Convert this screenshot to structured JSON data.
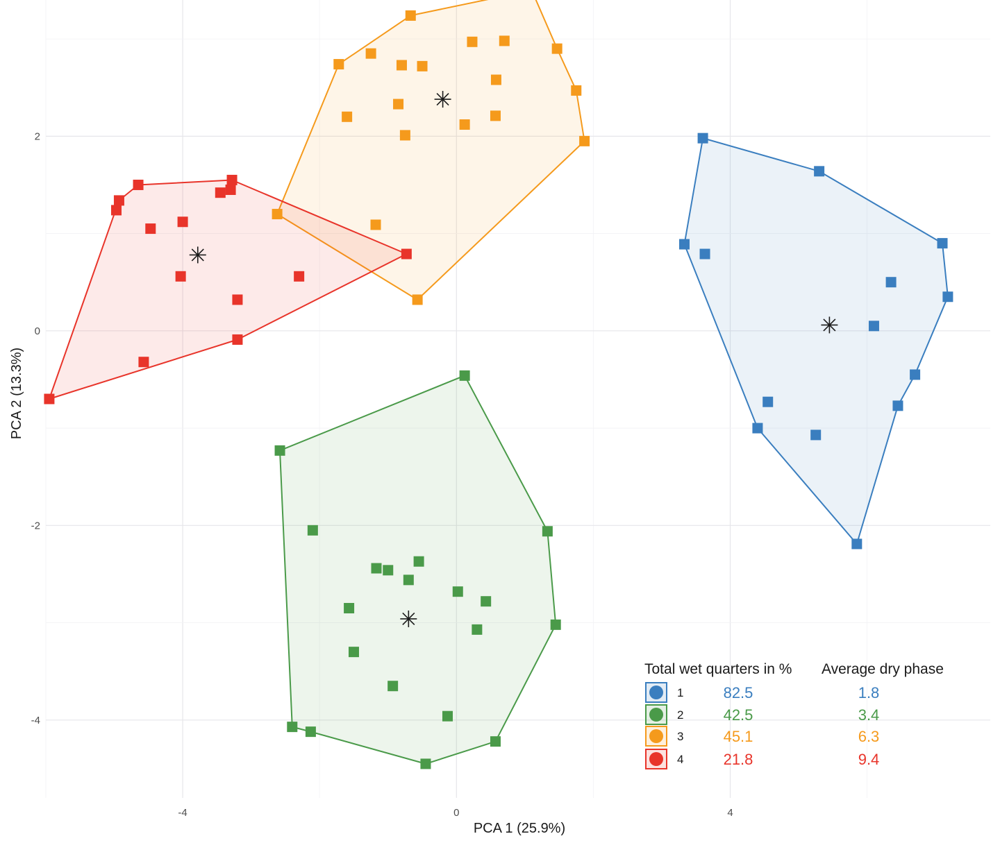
{
  "chart_data": {
    "type": "scatter",
    "xlabel": "PCA 1 (25.9%)",
    "ylabel": "PCA 2 (13.3%)",
    "xlim": [
      -6.0,
      7.8
    ],
    "ylim": [
      -4.8,
      3.4
    ],
    "x_ticks": [
      -4,
      0,
      4
    ],
    "x_tick_labels": [
      "-4",
      "0",
      "4"
    ],
    "y_ticks": [
      -4,
      -2,
      0,
      2
    ],
    "y_tick_labels": [
      "-4",
      "-2",
      "0",
      "2"
    ],
    "grid": true,
    "legend_position": "bottom-right",
    "legend_headers": [
      "Total wet quarters in %",
      "Average dry phase"
    ],
    "centroid_marker": "asterisk",
    "series": [
      {
        "name": "1",
        "color": "#3a7ebf",
        "wet_quarters": "82.5",
        "dry_phase": "1.8",
        "centroid": [
          5.45,
          0.06
        ],
        "hull": [
          [
            3.6,
            1.98
          ],
          [
            5.3,
            1.64
          ],
          [
            7.1,
            0.9
          ],
          [
            7.18,
            0.35
          ],
          [
            6.7,
            -0.45
          ],
          [
            6.45,
            -0.77
          ],
          [
            5.85,
            -2.19
          ],
          [
            4.4,
            -1.0
          ],
          [
            3.33,
            0.89
          ]
        ],
        "points": [
          [
            3.6,
            1.98
          ],
          [
            5.3,
            1.64
          ],
          [
            3.33,
            0.89
          ],
          [
            3.63,
            0.79
          ],
          [
            7.1,
            0.9
          ],
          [
            6.35,
            0.5
          ],
          [
            7.18,
            0.35
          ],
          [
            6.1,
            0.05
          ],
          [
            6.7,
            -0.45
          ],
          [
            6.45,
            -0.77
          ],
          [
            4.55,
            -0.73
          ],
          [
            4.4,
            -1.0
          ],
          [
            5.25,
            -1.07
          ],
          [
            5.85,
            -2.19
          ]
        ]
      },
      {
        "name": "2",
        "color": "#4a9a49",
        "wet_quarters": "42.5",
        "dry_phase": "3.4",
        "centroid": [
          -0.7,
          -2.96
        ],
        "hull": [
          [
            0.12,
            -0.46
          ],
          [
            1.33,
            -2.06
          ],
          [
            1.45,
            -3.02
          ],
          [
            0.57,
            -4.22
          ],
          [
            -0.45,
            -4.45
          ],
          [
            -2.13,
            -4.12
          ],
          [
            -2.4,
            -4.07
          ],
          [
            -2.58,
            -1.23
          ]
        ],
        "points": [
          [
            0.12,
            -0.46
          ],
          [
            -2.58,
            -1.23
          ],
          [
            -2.1,
            -2.05
          ],
          [
            1.33,
            -2.06
          ],
          [
            -0.55,
            -2.37
          ],
          [
            -1.17,
            -2.44
          ],
          [
            -1.0,
            -2.46
          ],
          [
            -0.7,
            -2.56
          ],
          [
            0.02,
            -2.68
          ],
          [
            0.43,
            -2.78
          ],
          [
            -1.57,
            -2.85
          ],
          [
            0.3,
            -3.07
          ],
          [
            1.45,
            -3.02
          ],
          [
            -1.5,
            -3.3
          ],
          [
            -0.93,
            -3.65
          ],
          [
            -0.13,
            -3.96
          ],
          [
            -2.4,
            -4.07
          ],
          [
            -2.13,
            -4.12
          ],
          [
            0.57,
            -4.22
          ],
          [
            -0.45,
            -4.45
          ]
        ]
      },
      {
        "name": "3",
        "color": "#f59a1c",
        "wet_quarters": "45.1",
        "dry_phase": "6.3",
        "centroid": [
          -0.2,
          2.38
        ],
        "hull": [
          [
            1.1,
            3.5
          ],
          [
            1.47,
            2.9
          ],
          [
            1.75,
            2.47
          ],
          [
            1.87,
            1.95
          ],
          [
            -0.57,
            0.32
          ],
          [
            -2.62,
            1.2
          ],
          [
            -1.72,
            2.74
          ],
          [
            -0.67,
            3.24
          ]
        ],
        "points": [
          [
            1.1,
            3.5
          ],
          [
            -0.67,
            3.24
          ],
          [
            0.23,
            2.97
          ],
          [
            0.7,
            2.98
          ],
          [
            1.47,
            2.9
          ],
          [
            -1.72,
            2.74
          ],
          [
            -1.25,
            2.85
          ],
          [
            -0.8,
            2.73
          ],
          [
            -0.5,
            2.72
          ],
          [
            0.58,
            2.58
          ],
          [
            1.75,
            2.47
          ],
          [
            -0.85,
            2.33
          ],
          [
            -1.6,
            2.2
          ],
          [
            0.57,
            2.21
          ],
          [
            0.12,
            2.12
          ],
          [
            -0.75,
            2.01
          ],
          [
            1.87,
            1.95
          ],
          [
            -2.62,
            1.2
          ],
          [
            -1.18,
            1.09
          ],
          [
            -0.57,
            0.32
          ]
        ]
      },
      {
        "name": "4",
        "color": "#e8342a",
        "wet_quarters": "21.8",
        "dry_phase": "9.4",
        "centroid": [
          -3.78,
          0.78
        ],
        "hull": [
          [
            -3.28,
            1.55
          ],
          [
            -0.73,
            0.79
          ],
          [
            -3.2,
            -0.09
          ],
          [
            -5.95,
            -0.7
          ],
          [
            -4.93,
            1.34
          ],
          [
            -4.65,
            1.5
          ]
        ],
        "points": [
          [
            -3.28,
            1.55
          ],
          [
            -3.3,
            1.45
          ],
          [
            -3.45,
            1.42
          ],
          [
            -4.65,
            1.5
          ],
          [
            -4.93,
            1.34
          ],
          [
            -4.97,
            1.24
          ],
          [
            -4.47,
            1.05
          ],
          [
            -4.0,
            1.12
          ],
          [
            -0.73,
            0.79
          ],
          [
            -4.03,
            0.56
          ],
          [
            -2.3,
            0.56
          ],
          [
            -3.2,
            0.32
          ],
          [
            -3.2,
            -0.09
          ],
          [
            -4.57,
            -0.32
          ],
          [
            -5.95,
            -0.7
          ]
        ]
      }
    ]
  }
}
